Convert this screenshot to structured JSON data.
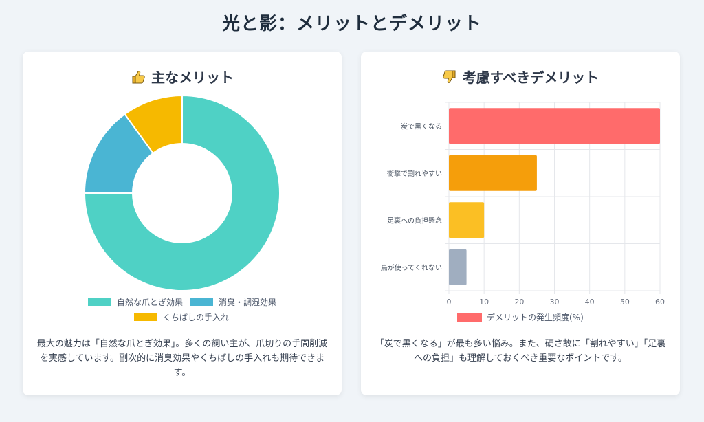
{
  "page": {
    "title": "光と影：メリットとデメリット"
  },
  "left": {
    "title": "主なメリット",
    "icon": "thumbs-up-icon",
    "description": "最大の魅力は「自然な爪とぎ効果」。多くの飼い主が、爪切りの手間削減を実感しています。副次的に消臭効果やくちばしの手入れも期待できます。"
  },
  "right": {
    "title": "考慮すべきデメリット",
    "icon": "thumbs-down-icon",
    "description": "「炭で黒くなる」が最も多い悩み。また、硬さ故に「割れやすい」「足裏への負担」も理解しておくべき重要なポイントです。"
  },
  "chart_data": [
    {
      "type": "pie",
      "variant": "doughnut",
      "categories": [
        "自然な爪とぎ効果",
        "消臭・調湿効果",
        "くちばしの手入れ"
      ],
      "values": [
        75,
        15,
        10
      ],
      "colors": [
        "#4fd1c5",
        "#4ab5d3",
        "#f6b900"
      ],
      "legend_position": "bottom"
    },
    {
      "type": "bar",
      "orientation": "horizontal",
      "categories": [
        "炭で黒くなる",
        "衝撃で割れやすい",
        "足裏への負担懸念",
        "鳥が使ってくれない"
      ],
      "series": [
        {
          "name": "デメリットの発生頻度(%)",
          "values": [
            60,
            25,
            10,
            5
          ]
        }
      ],
      "colors": [
        "#ff6b6b",
        "#f59e0b",
        "#fbbf24",
        "#a0aec0"
      ],
      "legend_color": "#ff6b6b",
      "xlim": [
        0,
        60
      ],
      "xticks": [
        "0",
        "10",
        "20",
        "30",
        "40",
        "50",
        "60"
      ],
      "grid": true,
      "legend_position": "bottom"
    }
  ]
}
